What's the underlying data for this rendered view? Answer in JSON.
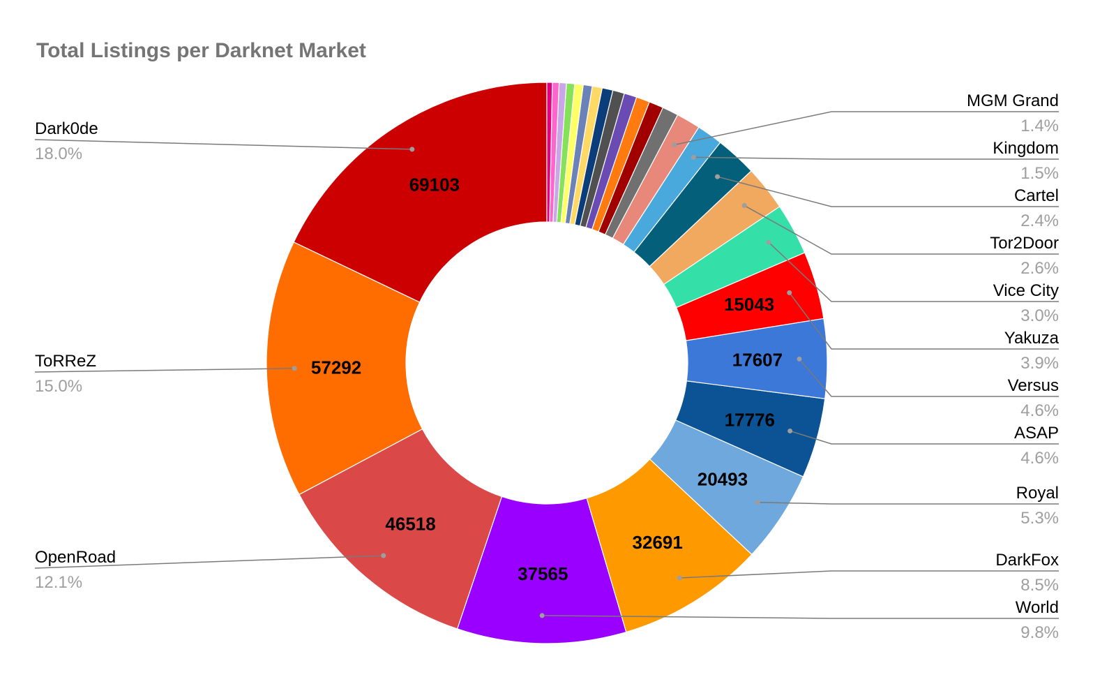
{
  "chart_data": {
    "type": "pie",
    "title": "Total Listings per Darknet Market",
    "donut": true,
    "total_estimate": 383905,
    "slices": [
      {
        "name": "Dark0de",
        "value": 69103,
        "percent_label": "18.0%",
        "color": "#cc0000",
        "value_label": "69103"
      },
      {
        "name": "ToRReZ",
        "value": 57292,
        "percent_label": "15.0%",
        "color": "#ff6d01",
        "value_label": "57292"
      },
      {
        "name": "OpenRoad",
        "value": 46518,
        "percent_label": "12.1%",
        "color": "#db4848",
        "value_label": "46518"
      },
      {
        "name": "",
        "value": 37565,
        "percent_label": "",
        "color": "#9900ff",
        "value_label": "37565"
      },
      {
        "name": "World",
        "value": 37565,
        "percent_label": "9.8%",
        "color": "#9900ff",
        "value_label": ""
      },
      {
        "name": "DarkFox",
        "value": 32691,
        "percent_label": "8.5%",
        "color": "#ff9900",
        "value_label": "32691"
      },
      {
        "name": "Royal",
        "value": 20493,
        "percent_label": "5.3%",
        "color": "#6fa8dc",
        "value_label": "20493"
      },
      {
        "name": "ASAP",
        "value": 17776,
        "percent_label": "4.6%",
        "color": "#0b5394",
        "value_label": "17776"
      },
      {
        "name": "Versus",
        "value": 17607,
        "percent_label": "4.6%",
        "color": "#3c78d8",
        "value_label": "17607"
      },
      {
        "name": "Yakuza",
        "value": 15043,
        "percent_label": "3.9%",
        "color": "#ff0000",
        "value_label": "15043"
      },
      {
        "name": "Vice City",
        "value": 11500,
        "percent_label": "3.0%",
        "color": "#34e0a8",
        "value_label": ""
      },
      {
        "name": "Tor2Door",
        "value": 9980,
        "percent_label": "2.6%",
        "color": "#f0a95e",
        "value_label": ""
      },
      {
        "name": "Cartel",
        "value": 9210,
        "percent_label": "2.4%",
        "color": "#045f7a",
        "value_label": ""
      },
      {
        "name": "Kingdom",
        "value": 5760,
        "percent_label": "1.5%",
        "color": "#4aa9dc",
        "value_label": ""
      },
      {
        "name": "MGM Grand",
        "value": 5370,
        "percent_label": "1.4%",
        "color": "#e8887a",
        "value_label": ""
      }
    ],
    "minor_slices": [
      {
        "value": 3600,
        "color": "#707070"
      },
      {
        "value": 3200,
        "color": "#a10000"
      },
      {
        "value": 3000,
        "color": "#ff7b10"
      },
      {
        "value": 2800,
        "color": "#6a4bb4"
      },
      {
        "value": 2600,
        "color": "#505050"
      },
      {
        "value": 2400,
        "color": "#0a3d7a"
      },
      {
        "value": 2200,
        "color": "#ffd966"
      },
      {
        "value": 2000,
        "color": "#6b82b8"
      },
      {
        "value": 1900,
        "color": "#ffff66"
      },
      {
        "value": 1800,
        "color": "#85e05a"
      },
      {
        "value": 1600,
        "color": "#c9a6e8"
      },
      {
        "value": 1500,
        "color": "#ff66cc"
      },
      {
        "value": 1200,
        "color": "#e6007e"
      }
    ]
  }
}
